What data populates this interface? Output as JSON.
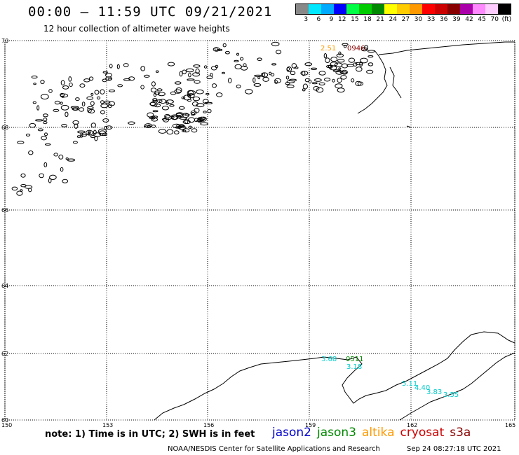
{
  "header": {
    "title": "00:00 – 11:59 UTC 09/21/2021",
    "subtitle": "12 hour collection of altimeter wave heights"
  },
  "legend": {
    "colors": [
      "#888888",
      "#00e8ff",
      "#00aaff",
      "#0000ff",
      "#00ff44",
      "#00cc00",
      "#008800",
      "#ffff00",
      "#ffcc00",
      "#ff9900",
      "#ff0000",
      "#cc0000",
      "#880000",
      "#aa00aa",
      "#ff88ff",
      "#ffccff",
      "#000000"
    ],
    "labels": [
      "3",
      "6",
      "9",
      "12",
      "15",
      "18",
      "21",
      "24",
      "27",
      "30",
      "33",
      "36",
      "39",
      "42",
      "45",
      "70",
      "(ft)"
    ]
  },
  "axes": {
    "lat_labels": [
      "70",
      "68",
      "66",
      "64",
      "62",
      "60"
    ],
    "lon_labels": [
      "150",
      "153",
      "156",
      "159",
      "162",
      "165"
    ]
  },
  "track_labels": [
    {
      "text": "0946",
      "color": "#880000"
    },
    {
      "text": "0511",
      "color": "#008800"
    },
    {
      "text": "2.51",
      "color": "#ff9900"
    }
  ],
  "swh_values": [
    "3.68",
    "3.18",
    "5.11",
    "4.40",
    "3.83",
    "3.55"
  ],
  "note": "note: 1) Time is in UTC; 2) SWH is in feet",
  "satellites": [
    {
      "name": "jason2",
      "color": "#0000cc"
    },
    {
      "name": "jason3",
      "color": "#008800"
    },
    {
      "name": "altika",
      "color": "#ff9900"
    },
    {
      "name": "cryosat",
      "color": "#cc0000"
    },
    {
      "name": "s3a",
      "color": "#880000"
    }
  ],
  "footer": {
    "credit": "NOAA/NESDIS Center for Satellite Applications and Research",
    "timestamp": "Sep 24 08:27:18 UTC 2021"
  }
}
